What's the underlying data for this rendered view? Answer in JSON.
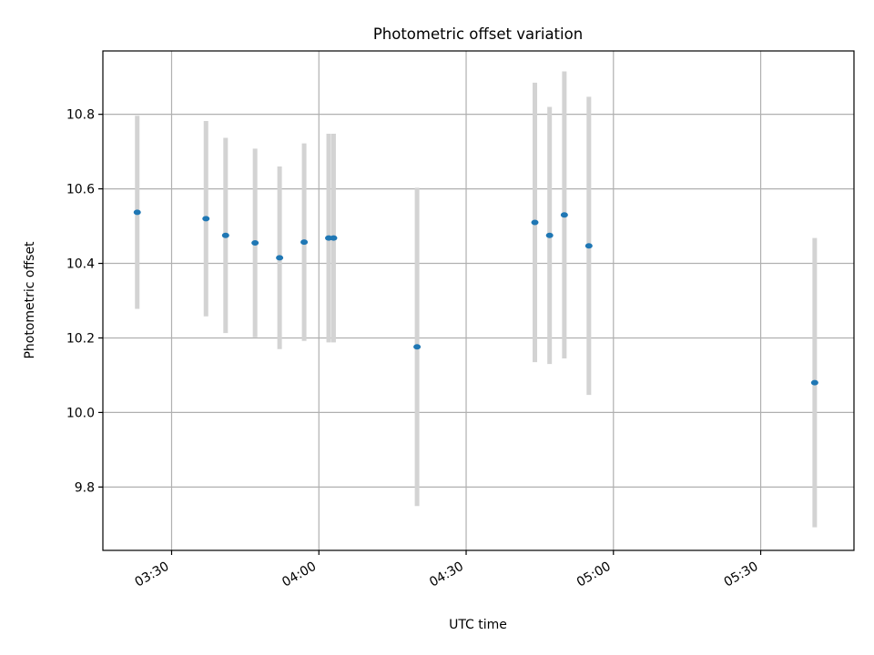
{
  "chart_data": {
    "type": "scatter",
    "title": "Photometric offset variation",
    "xlabel": "UTC time",
    "ylabel": "Photometric offset",
    "x_axis": {
      "type": "time",
      "min": "03:16",
      "max": "05:49",
      "tick_labels": [
        "03:30",
        "04:00",
        "04:30",
        "05:00",
        "05:30"
      ]
    },
    "y_axis": {
      "min": 9.63,
      "max": 10.97,
      "ticks": [
        9.8,
        10.0,
        10.2,
        10.4,
        10.6,
        10.8
      ],
      "tick_labels": [
        "9.8",
        "10.0",
        "10.2",
        "10.4",
        "10.6",
        "10.8"
      ]
    },
    "grid": true,
    "colors": {
      "point": "#1f77b4",
      "error_bar": "#d3d3d3",
      "grid": "#b0b0b0",
      "axes": "#000000"
    },
    "points": [
      {
        "x": "03:23",
        "y": 10.537,
        "err": 0.259
      },
      {
        "x": "03:37",
        "y": 10.52,
        "err": 0.262
      },
      {
        "x": "03:41",
        "y": 10.475,
        "err": 0.262
      },
      {
        "x": "03:47",
        "y": 10.455,
        "err": 0.253
      },
      {
        "x": "03:52",
        "y": 10.415,
        "err": 0.245
      },
      {
        "x": "03:57",
        "y": 10.457,
        "err": 0.265
      },
      {
        "x": "04:02",
        "y": 10.468,
        "err": 0.28
      },
      {
        "x": "04:03",
        "y": 10.468,
        "err": 0.28
      },
      {
        "x": "04:20",
        "y": 10.176,
        "err": 0.427
      },
      {
        "x": "04:44",
        "y": 10.51,
        "err": 0.375
      },
      {
        "x": "04:47",
        "y": 10.475,
        "err": 0.345
      },
      {
        "x": "04:50",
        "y": 10.53,
        "err": 0.385
      },
      {
        "x": "04:55",
        "y": 10.447,
        "err": 0.4
      },
      {
        "x": "05:41",
        "y": 10.08,
        "err": 0.388
      }
    ]
  }
}
